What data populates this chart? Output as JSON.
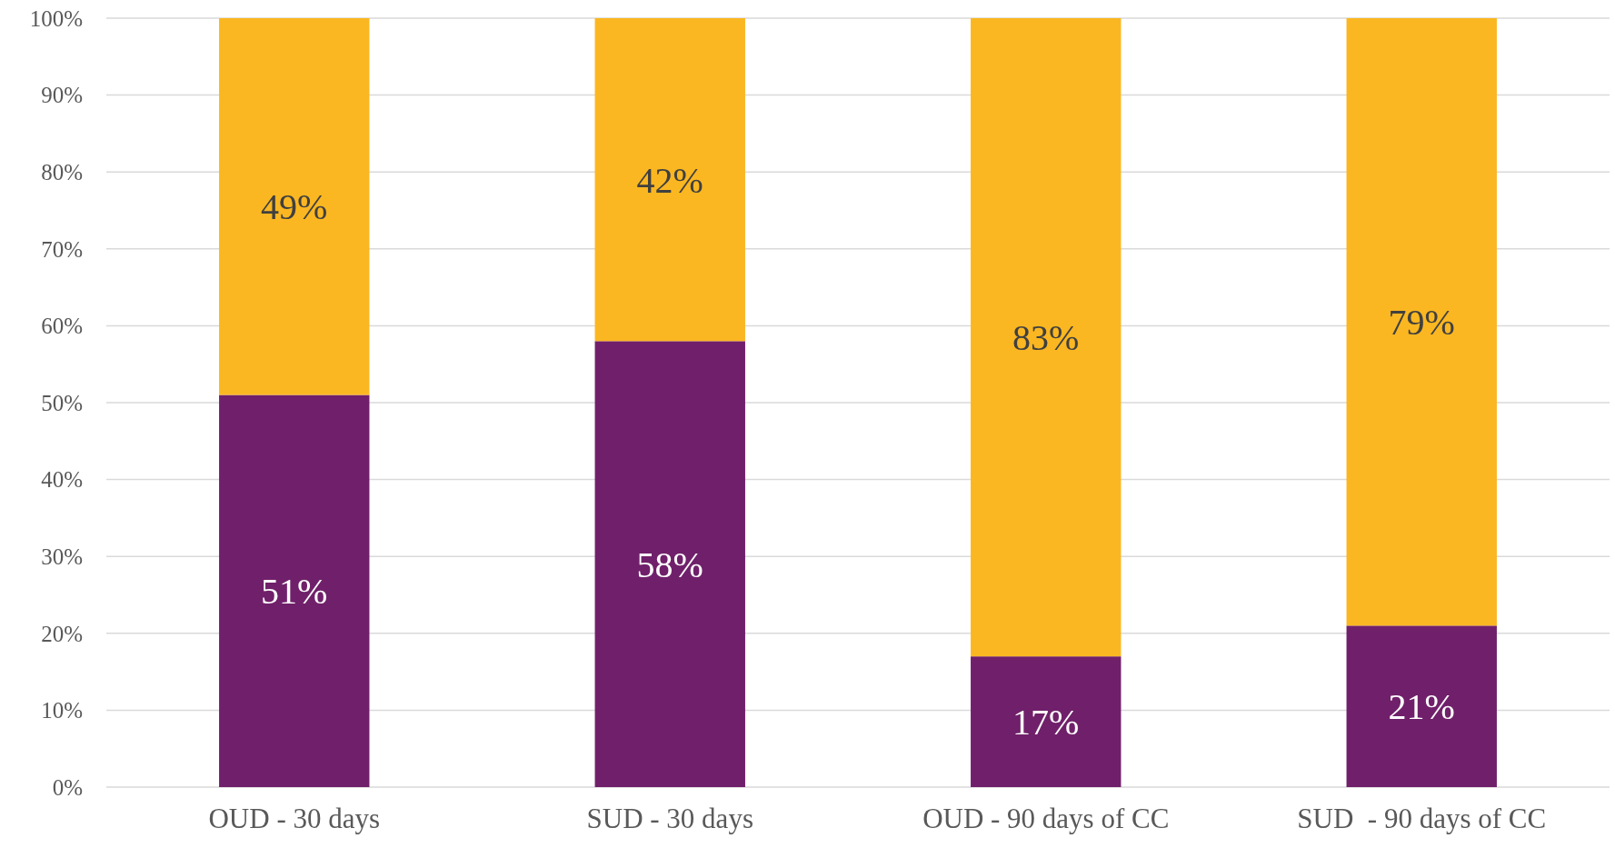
{
  "chart_data": {
    "type": "bar",
    "stacked": true,
    "categories": [
      "OUD - 30 days",
      "SUD - 30 days",
      "OUD - 90 days of CC",
      "SUD  - 90 days of CC"
    ],
    "series": [
      {
        "color": "#70206a",
        "values": [
          51,
          58,
          17,
          21
        ],
        "value_labels": [
          "51%",
          "58%",
          "17%",
          "21%"
        ]
      },
      {
        "color": "#fbb721",
        "values": [
          49,
          42,
          83,
          79
        ],
        "value_labels": [
          "49%",
          "42%",
          "83%",
          "79%"
        ]
      }
    ],
    "ylim": [
      0,
      100
    ],
    "yticks": [
      {
        "value": 0,
        "label": "0%"
      },
      {
        "value": 10,
        "label": "10%"
      },
      {
        "value": 20,
        "label": "20%"
      },
      {
        "value": 30,
        "label": "30%"
      },
      {
        "value": 40,
        "label": "40%"
      },
      {
        "value": 50,
        "label": "50%"
      },
      {
        "value": 60,
        "label": "60%"
      },
      {
        "value": 70,
        "label": "70%"
      },
      {
        "value": 80,
        "label": "80%"
      },
      {
        "value": 90,
        "label": "90%"
      },
      {
        "value": 100,
        "label": "100%"
      }
    ],
    "grid": "y"
  }
}
